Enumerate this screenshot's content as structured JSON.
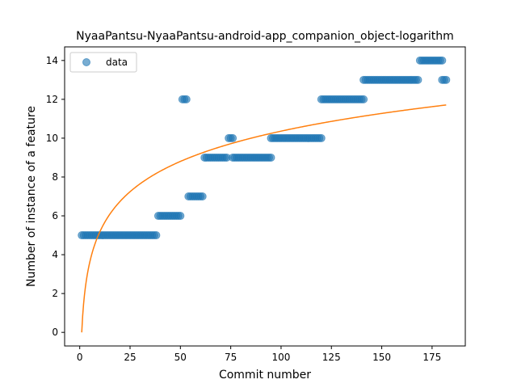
{
  "chart_data": {
    "type": "scatter",
    "title": "NyaaPantsu-NyaaPantsu-android-app_companion_object-logarithm",
    "xlabel": "Commit number",
    "ylabel": "Number of instance of a feature",
    "xlim": [
      -7.5,
      191.5
    ],
    "ylim": [
      -0.7,
      14.7
    ],
    "xticks": [
      0,
      25,
      50,
      75,
      100,
      125,
      150,
      175
    ],
    "yticks": [
      0,
      2,
      4,
      6,
      8,
      10,
      12,
      14
    ],
    "grid": false,
    "legend": {
      "position": "top-left",
      "entries": [
        "data"
      ]
    },
    "colors": {
      "data": "#1f77b4",
      "fit": "#ff7f0e"
    },
    "series": [
      {
        "name": "data",
        "kind": "scatter",
        "segments": [
          {
            "x_from": 1,
            "x_to": 38,
            "y": 5
          },
          {
            "x_from": 39,
            "x_to": 50,
            "y": 6
          },
          {
            "x_from": 51,
            "x_to": 53,
            "y": 12
          },
          {
            "x_from": 54,
            "x_to": 61,
            "y": 7
          },
          {
            "x_from": 62,
            "x_to": 73,
            "y": 9
          },
          {
            "x_from": 74,
            "x_to": 76,
            "y": 10
          },
          {
            "x_from": 76,
            "x_to": 95,
            "y": 9
          },
          {
            "x_from": 95,
            "x_to": 120,
            "y": 10
          },
          {
            "x_from": 120,
            "x_to": 141,
            "y": 12
          },
          {
            "x_from": 141,
            "x_to": 168,
            "y": 13
          },
          {
            "x_from": 169,
            "x_to": 180,
            "y": 14
          },
          {
            "x_from": 180,
            "x_to": 182,
            "y": 13
          }
        ]
      },
      {
        "kind": "line",
        "model": "logarithmic",
        "a": 2.25,
        "b": 0,
        "x_from": 1,
        "x_to": 182
      }
    ]
  }
}
